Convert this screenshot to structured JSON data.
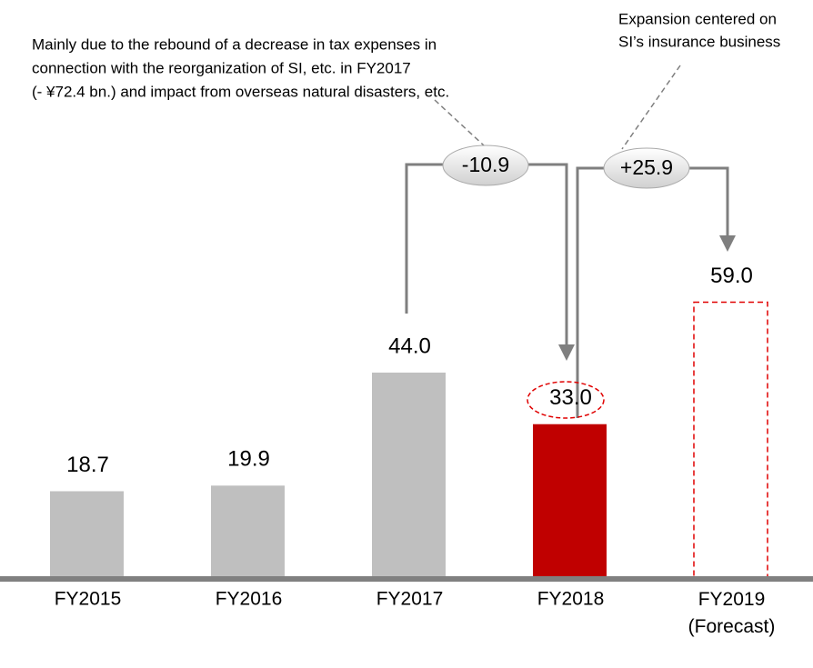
{
  "chart_data": {
    "type": "bar",
    "categories": [
      "FY2015",
      "FY2016",
      "FY2017",
      "FY2018",
      "FY2019\n(Forecast)"
    ],
    "values": [
      18.7,
      19.9,
      44,
      33,
      59
    ],
    "value_labels": [
      "18.7",
      "19.9",
      "44.0",
      "33.0",
      "59.0"
    ],
    "colors": [
      "#bfbfbf",
      "#bfbfbf",
      "#bfbfbf",
      "#c00000",
      "#e00000"
    ],
    "styles": [
      "solid",
      "solid",
      "solid",
      "solid",
      "dashed"
    ],
    "annotations": [
      {
        "text": "-10.9",
        "note": [
          "Mainly due to the rebound of a decrease in tax expenses in",
          "connection with the reorganization of SI, etc. in FY2017",
          "(- ¥72.4 bn.) and impact from overseas natural disasters, etc."
        ]
      },
      {
        "text": "+25.9",
        "note": [
          "Expansion centered on",
          "SI’s insurance business"
        ]
      }
    ]
  }
}
